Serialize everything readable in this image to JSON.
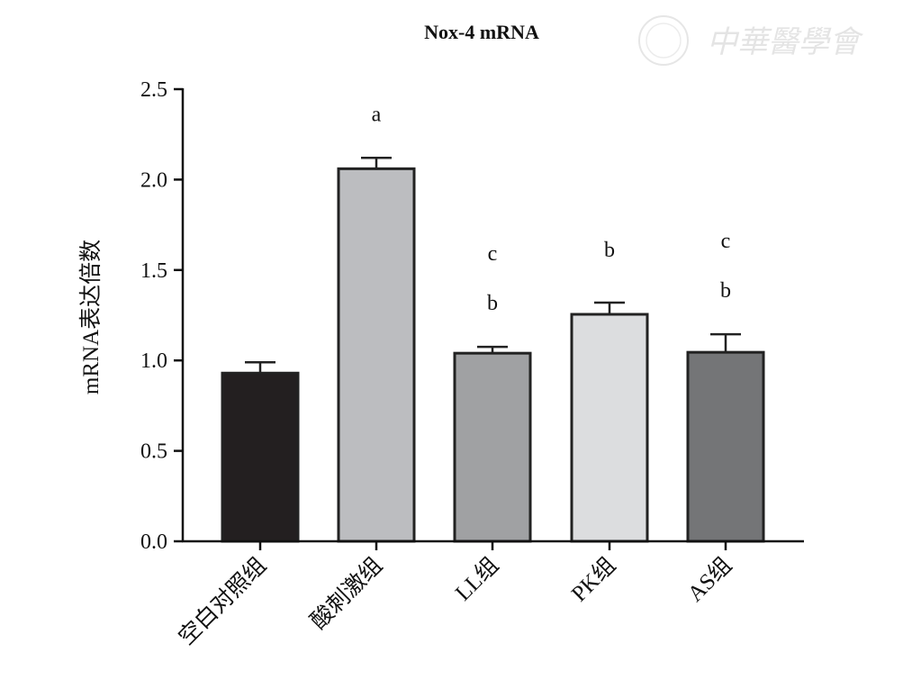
{
  "chart_data": {
    "type": "bar",
    "title": "Nox-4 mRNA",
    "xlabel": "",
    "ylabel": "mRNA表达倍数",
    "ylim": [
      0,
      2.5
    ],
    "yticks": [
      "0.0",
      "0.5",
      "1.0",
      "1.5",
      "2.0",
      "2.5"
    ],
    "ytick_values": [
      0,
      0.5,
      1.0,
      1.5,
      2.0,
      2.5
    ],
    "categories": [
      "空白对照组",
      "酸刺激组",
      "LL组",
      "PK组",
      "AS组"
    ],
    "values": [
      0.93,
      2.06,
      1.04,
      1.255,
      1.045
    ],
    "error_upper": [
      0.99,
      2.12,
      1.075,
      1.32,
      1.145
    ],
    "colors": [
      "#231f20",
      "#bcbdc0",
      "#a0a1a3",
      "#dcdddf",
      "#747577"
    ],
    "significance": [
      [],
      [
        "a"
      ],
      [
        "b",
        "c"
      ],
      [
        "b"
      ],
      [
        "b",
        "c"
      ]
    ],
    "grid": false
  },
  "watermark": "中華醫學會"
}
